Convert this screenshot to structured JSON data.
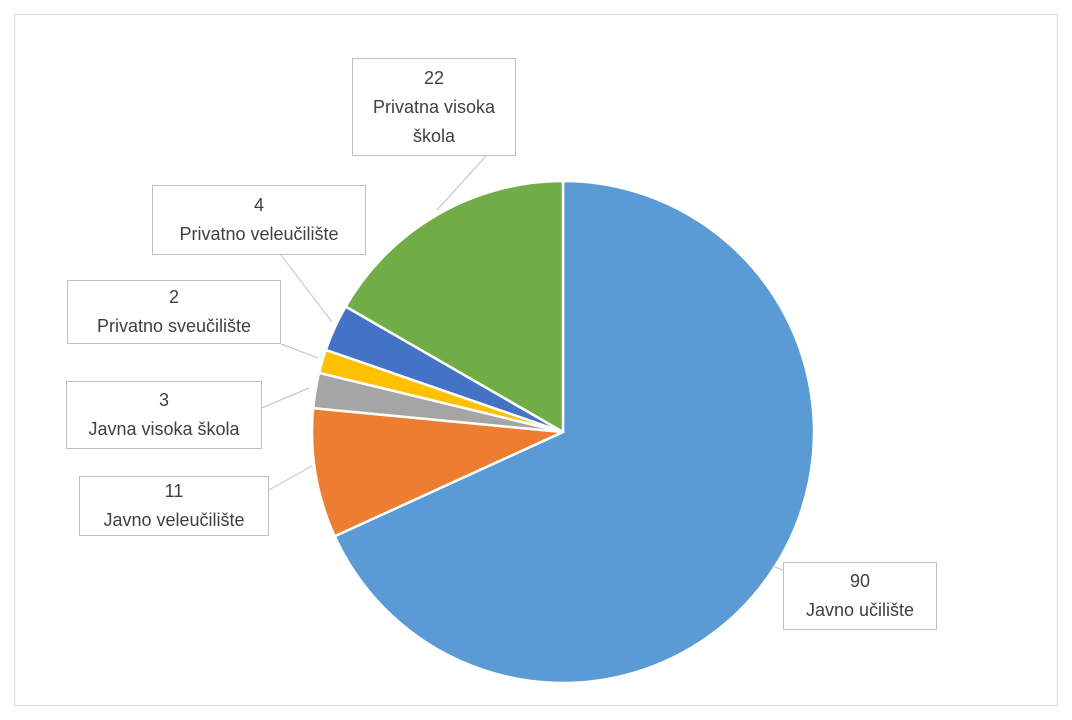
{
  "chart_data": {
    "type": "pie",
    "title": "",
    "series": [
      {
        "values": [
          90,
          11,
          3,
          2,
          4,
          22
        ],
        "categories": [
          "Javno učilište",
          "Javno veleučilište",
          "Javna visoka škola",
          "Privatno sveučilište",
          "Privatno veleučilište",
          "Privatna visoka škola"
        ],
        "colors": [
          "#5b9bd5",
          "#ed7d31",
          "#a5a5a5",
          "#ffc000",
          "#4472c4",
          "#70ad47"
        ]
      }
    ],
    "data_labels": [
      {
        "value": "90",
        "name": "Javno učilište"
      },
      {
        "value": "11",
        "name": "Javno veleučilište"
      },
      {
        "value": "3",
        "name": "Javna visoka škola"
      },
      {
        "value": "2",
        "name": "Privatno sveučilište"
      },
      {
        "value": "4",
        "name": "Privatno veleučilište"
      },
      {
        "value": "22",
        "name": "Privatna visoka\nškola"
      }
    ],
    "legend": "none",
    "start_angle_deg": 0,
    "direction": "clockwise"
  }
}
